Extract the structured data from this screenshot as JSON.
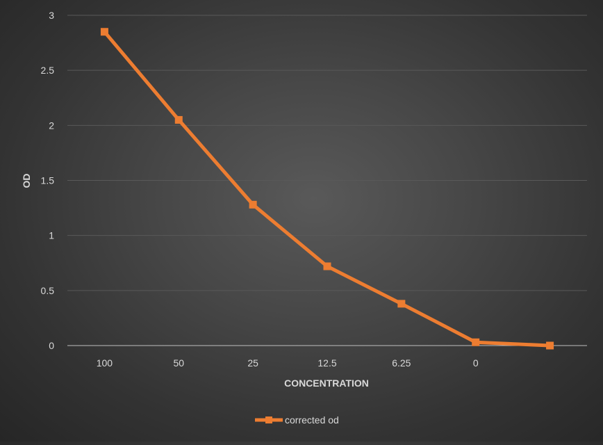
{
  "chart_data": {
    "type": "line",
    "title": "",
    "xlabel": "CONCENTRATION",
    "ylabel": "OD",
    "categories": [
      "100",
      "50",
      "25",
      "12.5",
      "6.25",
      "0",
      ""
    ],
    "series": [
      {
        "name": "corrected od",
        "values": [
          2.85,
          2.05,
          1.28,
          0.72,
          0.38,
          0.03,
          0.0
        ],
        "color": "#ED7D31"
      }
    ],
    "ylim": [
      0,
      3
    ],
    "yticks": [
      "0",
      "0.5",
      "1",
      "1.5",
      "2",
      "2.5",
      "3"
    ],
    "grid": true,
    "legend_position": "bottom",
    "colors": {
      "background": "#404040",
      "gridline": "#595959",
      "axis_line": "#BFBFBF",
      "text": "#D9D9D9"
    }
  }
}
